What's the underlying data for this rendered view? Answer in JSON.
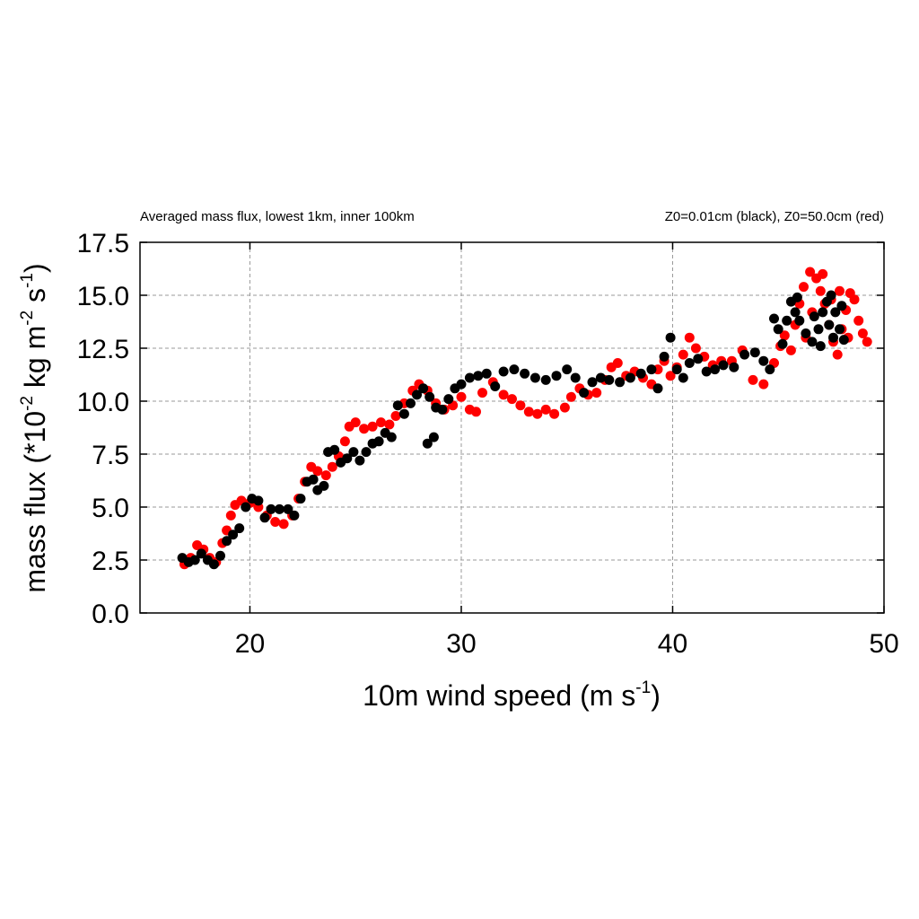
{
  "header": {
    "left_title": "Averaged mass flux, lowest 1km, inner 100km",
    "right_title": "Z0=0.01cm (black), Z0=50.0cm (red)"
  },
  "axes": {
    "x_label_main": "10m wind speed (m s",
    "x_label_sup": "-1",
    "x_label_close": ")",
    "y_label_part1": "mass flux (*10",
    "y_label_sup1": "-2",
    "y_label_part2": " kg m",
    "y_label_sup2": "-2",
    "y_label_part3": " s",
    "y_label_sup3": "-1",
    "y_label_close": ")"
  },
  "chart_data": {
    "type": "scatter",
    "grid": true,
    "xlim": [
      14.8,
      50
    ],
    "ylim": [
      0,
      17.5
    ],
    "x_ticks": [
      20,
      30,
      40,
      50
    ],
    "x_tick_labels": [
      "20",
      "30",
      "40",
      "50"
    ],
    "y_ticks": [
      0,
      2.5,
      5,
      7.5,
      10,
      12.5,
      15,
      17.5
    ],
    "y_tick_labels": [
      "0.0",
      "2.5",
      "5.0",
      "7.5",
      "10.0",
      "12.5",
      "15.0",
      "17.5"
    ],
    "series": [
      {
        "color": "#ff0000",
        "points": [
          [
            16.9,
            2.3
          ],
          [
            17.2,
            2.6
          ],
          [
            17.5,
            3.2
          ],
          [
            17.8,
            3.0
          ],
          [
            18.1,
            2.6
          ],
          [
            18.4,
            2.4
          ],
          [
            18.7,
            3.3
          ],
          [
            18.9,
            3.9
          ],
          [
            19.1,
            4.6
          ],
          [
            19.3,
            5.1
          ],
          [
            19.6,
            5.3
          ],
          [
            20.0,
            5.2
          ],
          [
            20.4,
            5.0
          ],
          [
            20.8,
            4.6
          ],
          [
            21.2,
            4.3
          ],
          [
            21.6,
            4.2
          ],
          [
            22.0,
            4.6
          ],
          [
            22.3,
            5.4
          ],
          [
            22.6,
            6.2
          ],
          [
            22.9,
            6.9
          ],
          [
            23.2,
            6.7
          ],
          [
            23.6,
            6.5
          ],
          [
            23.9,
            6.9
          ],
          [
            24.2,
            7.4
          ],
          [
            24.5,
            8.1
          ],
          [
            24.7,
            8.8
          ],
          [
            25.0,
            9.0
          ],
          [
            25.4,
            8.7
          ],
          [
            25.8,
            8.8
          ],
          [
            26.2,
            9.0
          ],
          [
            26.6,
            8.9
          ],
          [
            26.9,
            9.3
          ],
          [
            27.3,
            9.9
          ],
          [
            27.7,
            10.5
          ],
          [
            28.0,
            10.8
          ],
          [
            28.4,
            10.5
          ],
          [
            28.8,
            9.9
          ],
          [
            29.2,
            9.6
          ],
          [
            29.6,
            9.8
          ],
          [
            30.0,
            10.2
          ],
          [
            30.4,
            9.6
          ],
          [
            30.7,
            9.5
          ],
          [
            31.0,
            10.4
          ],
          [
            31.5,
            10.9
          ],
          [
            32.0,
            10.3
          ],
          [
            32.4,
            10.1
          ],
          [
            32.8,
            9.8
          ],
          [
            33.2,
            9.5
          ],
          [
            33.6,
            9.4
          ],
          [
            34.0,
            9.6
          ],
          [
            34.4,
            9.4
          ],
          [
            34.9,
            9.7
          ],
          [
            35.2,
            10.2
          ],
          [
            35.6,
            10.6
          ],
          [
            36.0,
            10.3
          ],
          [
            36.4,
            10.4
          ],
          [
            36.8,
            11.0
          ],
          [
            37.1,
            11.6
          ],
          [
            37.4,
            11.8
          ],
          [
            37.8,
            11.2
          ],
          [
            38.2,
            11.4
          ],
          [
            38.6,
            11.1
          ],
          [
            39.0,
            10.8
          ],
          [
            39.3,
            11.5
          ],
          [
            39.6,
            11.9
          ],
          [
            39.9,
            11.2
          ],
          [
            40.2,
            11.6
          ],
          [
            40.5,
            12.2
          ],
          [
            40.8,
            13.0
          ],
          [
            41.1,
            12.5
          ],
          [
            41.5,
            12.1
          ],
          [
            41.9,
            11.7
          ],
          [
            42.3,
            11.9
          ],
          [
            42.8,
            11.9
          ],
          [
            43.3,
            12.4
          ],
          [
            43.8,
            11.0
          ],
          [
            44.3,
            10.8
          ],
          [
            44.8,
            11.8
          ],
          [
            45.1,
            12.6
          ],
          [
            45.3,
            13.1
          ],
          [
            45.6,
            12.4
          ],
          [
            45.8,
            13.6
          ],
          [
            46.0,
            14.6
          ],
          [
            46.2,
            15.4
          ],
          [
            46.5,
            16.1
          ],
          [
            46.8,
            15.8
          ],
          [
            47.0,
            15.2
          ],
          [
            47.2,
            14.6
          ],
          [
            47.4,
            13.6
          ],
          [
            47.6,
            12.8
          ],
          [
            47.8,
            12.2
          ],
          [
            48.0,
            13.4
          ],
          [
            48.2,
            14.3
          ],
          [
            48.4,
            15.1
          ],
          [
            48.6,
            14.8
          ],
          [
            48.8,
            13.8
          ],
          [
            49.0,
            13.2
          ],
          [
            49.2,
            12.8
          ],
          [
            46.3,
            13.0
          ],
          [
            46.6,
            14.2
          ],
          [
            47.1,
            16.0
          ],
          [
            47.5,
            14.8
          ],
          [
            47.9,
            15.2
          ],
          [
            48.3,
            13.0
          ]
        ]
      },
      {
        "color": "#000000",
        "points": [
          [
            16.8,
            2.6
          ],
          [
            17.1,
            2.4
          ],
          [
            17.4,
            2.5
          ],
          [
            17.7,
            2.8
          ],
          [
            18.0,
            2.5
          ],
          [
            18.3,
            2.3
          ],
          [
            18.6,
            2.7
          ],
          [
            18.9,
            3.4
          ],
          [
            19.2,
            3.7
          ],
          [
            19.5,
            4.0
          ],
          [
            19.8,
            5.0
          ],
          [
            20.1,
            5.4
          ],
          [
            20.4,
            5.3
          ],
          [
            20.7,
            4.5
          ],
          [
            21.0,
            4.9
          ],
          [
            21.4,
            4.9
          ],
          [
            21.8,
            4.9
          ],
          [
            22.1,
            4.6
          ],
          [
            22.4,
            5.4
          ],
          [
            22.7,
            6.2
          ],
          [
            23.0,
            6.3
          ],
          [
            23.2,
            5.8
          ],
          [
            23.5,
            6.0
          ],
          [
            23.7,
            7.6
          ],
          [
            24.0,
            7.7
          ],
          [
            24.3,
            7.1
          ],
          [
            24.6,
            7.3
          ],
          [
            24.9,
            7.6
          ],
          [
            25.2,
            7.2
          ],
          [
            25.5,
            7.6
          ],
          [
            25.8,
            8.0
          ],
          [
            26.1,
            8.1
          ],
          [
            26.4,
            8.5
          ],
          [
            26.7,
            8.3
          ],
          [
            27.0,
            9.8
          ],
          [
            27.3,
            9.4
          ],
          [
            27.6,
            9.9
          ],
          [
            27.9,
            10.3
          ],
          [
            28.2,
            10.6
          ],
          [
            28.5,
            10.2
          ],
          [
            28.8,
            9.7
          ],
          [
            29.1,
            9.6
          ],
          [
            29.4,
            10.1
          ],
          [
            28.4,
            8.0
          ],
          [
            28.7,
            8.3
          ],
          [
            29.7,
            10.6
          ],
          [
            30.0,
            10.8
          ],
          [
            30.4,
            11.1
          ],
          [
            30.8,
            11.2
          ],
          [
            31.2,
            11.3
          ],
          [
            31.6,
            10.7
          ],
          [
            32.0,
            11.4
          ],
          [
            32.5,
            11.5
          ],
          [
            33.0,
            11.3
          ],
          [
            33.5,
            11.1
          ],
          [
            34.0,
            11.0
          ],
          [
            34.5,
            11.2
          ],
          [
            35.0,
            11.5
          ],
          [
            35.4,
            11.1
          ],
          [
            35.8,
            10.4
          ],
          [
            36.2,
            10.9
          ],
          [
            36.6,
            11.1
          ],
          [
            37.0,
            11.0
          ],
          [
            37.5,
            10.9
          ],
          [
            38.0,
            11.1
          ],
          [
            38.5,
            11.3
          ],
          [
            39.0,
            11.5
          ],
          [
            39.3,
            10.6
          ],
          [
            39.6,
            12.1
          ],
          [
            39.9,
            13.0
          ],
          [
            40.2,
            11.5
          ],
          [
            40.5,
            11.1
          ],
          [
            40.8,
            11.8
          ],
          [
            41.2,
            12.0
          ],
          [
            41.6,
            11.4
          ],
          [
            42.0,
            11.5
          ],
          [
            42.4,
            11.7
          ],
          [
            42.9,
            11.6
          ],
          [
            43.4,
            12.2
          ],
          [
            43.9,
            12.3
          ],
          [
            44.3,
            11.9
          ],
          [
            44.6,
            11.5
          ],
          [
            44.8,
            13.9
          ],
          [
            45.0,
            13.4
          ],
          [
            45.2,
            12.7
          ],
          [
            45.4,
            13.8
          ],
          [
            45.6,
            14.7
          ],
          [
            45.8,
            14.2
          ],
          [
            46.0,
            13.8
          ],
          [
            46.3,
            13.2
          ],
          [
            46.6,
            12.8
          ],
          [
            46.9,
            13.4
          ],
          [
            47.1,
            14.2
          ],
          [
            47.3,
            14.7
          ],
          [
            47.5,
            15.0
          ],
          [
            47.7,
            14.2
          ],
          [
            47.9,
            13.4
          ],
          [
            48.1,
            12.9
          ],
          [
            47.0,
            12.6
          ],
          [
            47.6,
            13.0
          ],
          [
            48.0,
            14.5
          ],
          [
            46.7,
            14.0
          ],
          [
            47.4,
            13.6
          ],
          [
            45.9,
            14.9
          ]
        ]
      }
    ]
  }
}
